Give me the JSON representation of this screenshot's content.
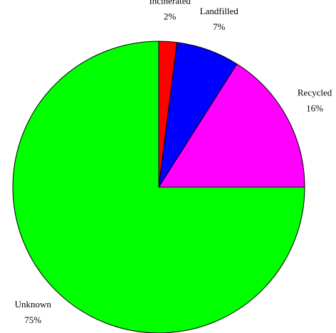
{
  "chart_data": {
    "type": "pie",
    "categories": [
      "Incinerated",
      "Landfilled",
      "Recycled",
      "Unknown"
    ],
    "values": [
      2,
      7,
      16,
      75
    ],
    "value_labels": [
      "2%",
      "7%",
      "16%",
      "75%"
    ],
    "colors": [
      "#ff0000",
      "#0000ff",
      "#ff00ff",
      "#00ff00"
    ]
  }
}
